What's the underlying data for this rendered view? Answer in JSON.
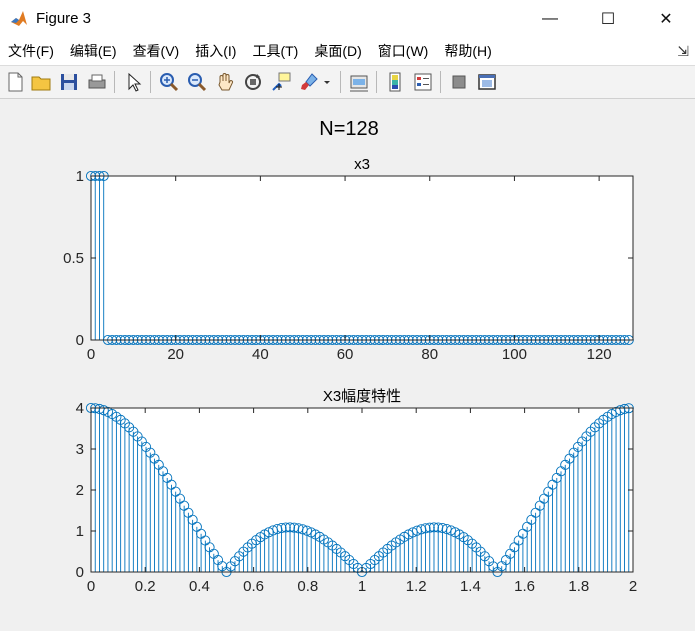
{
  "window": {
    "title": "Figure 3",
    "minimize": "—",
    "maximize": "☐",
    "close": "✕"
  },
  "menu": [
    "文件(F)",
    "编辑(E)",
    "查看(V)",
    "插入(I)",
    "工具(T)",
    "桌面(D)",
    "窗口(W)",
    "帮助(H)"
  ],
  "menu_overflow": "⇲",
  "toolbar": [
    "new-file-icon",
    "open-folder-icon",
    "save-icon",
    "print-icon",
    "pointer-icon",
    "zoom-in-icon",
    "zoom-out-icon",
    "pan-icon",
    "rotate-3d-icon",
    "data-cursor-icon",
    "brush-icon",
    "link-plot-icon",
    "colorbar-icon",
    "legend-icon",
    "hide-plot-tools-icon",
    "show-plot-tools-icon"
  ],
  "colors": {
    "stem": "#0072bd",
    "axes": "#262626",
    "figure_bg": "#f0f0f0"
  },
  "chart_data": [
    {
      "type": "stem",
      "super_title": "N=128",
      "title": "x3",
      "xlim": [
        0,
        128
      ],
      "ylim": [
        0,
        1
      ],
      "xticks": [
        0,
        20,
        40,
        60,
        80,
        100,
        120
      ],
      "yticks": [
        0,
        0.5,
        1
      ],
      "n": 128,
      "values": "x[n] = 1 for n = 0..3, 0 for n = 4..127"
    },
    {
      "type": "stem",
      "title": "X3幅度特性",
      "xlim": [
        0,
        2
      ],
      "ylim": [
        0,
        4
      ],
      "xticks": [
        0,
        0.2,
        0.4,
        0.6,
        0.8,
        1,
        1.2,
        1.4,
        1.6,
        1.8,
        2
      ],
      "yticks": [
        0,
        1,
        2,
        3,
        4
      ],
      "n": 128,
      "x": "k*2/128, k = 0..127",
      "values": "|sin(4*pi*k/128) / sin(pi*k/128)|, 4 at k = 0"
    }
  ]
}
